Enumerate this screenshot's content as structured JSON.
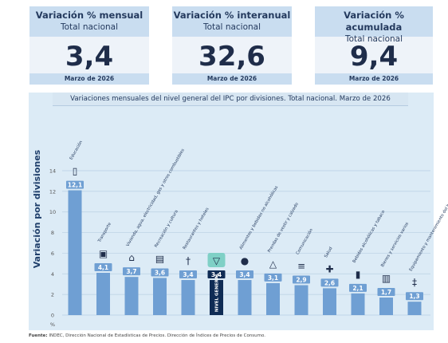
{
  "kpis": [
    {
      "title": "Variación % mensual",
      "subtitle": "Total nacional",
      "value": "3,4",
      "date": "Marzo de 2026"
    },
    {
      "title": "Variación % interanual",
      "subtitle": "Total nacional",
      "value": "32,6",
      "date": "Marzo de 2026"
    },
    {
      "title": "Variación % acumulada",
      "subtitle": "Total nacional",
      "value": "9,4",
      "date": "Marzo de 2026"
    }
  ],
  "source": {
    "label": "Fuente:",
    "text": "INDEC, Dirección Nacional de Estadísticas de Precios. Dirección de Índices de Precios de Consumo."
  },
  "colors": {
    "bar": "#6f9fd3",
    "bar_general": "#0f2c55",
    "label_box": "#6f9fd3",
    "background": "#dcebf6",
    "header": "#c9ddf0",
    "text": "#1f2d4a"
  },
  "chart_data": {
    "type": "bar",
    "title": "Variaciones mensuales del nivel general del IPC por divisiones. Total nacional. Marzo de 2026",
    "ylabel": "Variación por divisiones",
    "yunit": "%",
    "ylim": [
      0,
      14
    ],
    "yticks": [
      0,
      2,
      4,
      6,
      8,
      10,
      12,
      14
    ],
    "grid": true,
    "categories": [
      "Educación",
      "Transporte",
      "Vivienda, agua, electricidad, gas y otros combustibles",
      "Recreación y cultura",
      "Restaurantes y hoteles",
      "NIVEL GENERAL",
      "Alimentos y bebidas no alcohólicas",
      "Prendas de vestir y calzado",
      "Comunicación",
      "Salud",
      "Bebidas alcohólicas y tabaco",
      "Bienes y servicios varios",
      "Equipamiento y mantenimiento del hogar"
    ],
    "values": [
      12.1,
      4.1,
      3.7,
      3.6,
      3.4,
      3.4,
      3.4,
      3.1,
      2.9,
      2.6,
      2.1,
      1.7,
      1.3
    ],
    "value_labels": [
      "12,1",
      "4,1",
      "3,7",
      "3,6",
      "3,4",
      "3,4",
      "3,4",
      "3,1",
      "2,9",
      "2,6",
      "2,1",
      "1,7",
      "1,3"
    ],
    "icons": [
      "book-icon",
      "bus-icon",
      "house-icon",
      "film-icon",
      "cutlery-icon",
      "basket-icon",
      "fruit-icon",
      "shirt-icon",
      "wifi-icon",
      "health-cross-icon",
      "bottle-icon",
      "perfume-icon",
      "tools-icon"
    ],
    "highlight_category": "NIVEL GENERAL"
  }
}
